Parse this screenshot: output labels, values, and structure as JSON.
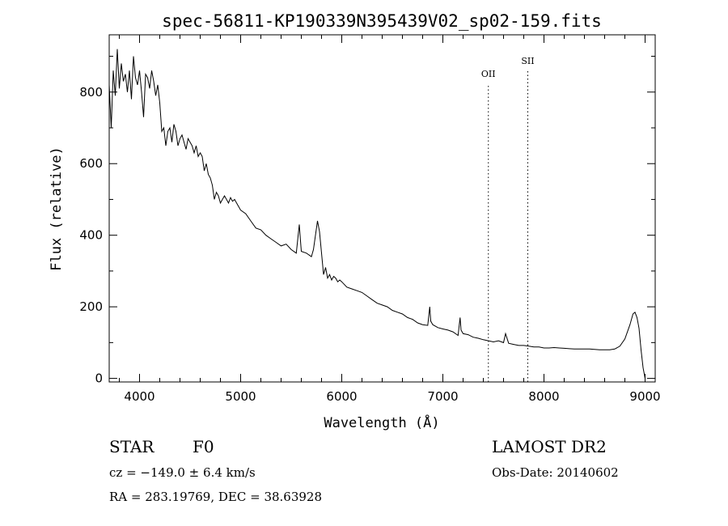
{
  "chart_data": {
    "type": "line",
    "title": "spec-56811-KP190339N395439V02_sp02-159.fits",
    "xlabel": "Wavelength (Å)",
    "ylabel": "Flux (relative)",
    "xlim": [
      3700,
      9100
    ],
    "ylim": [
      -10,
      960
    ],
    "xticks": [
      4000,
      5000,
      6000,
      7000,
      8000,
      9000
    ],
    "yticks": [
      0,
      200,
      400,
      600,
      800
    ],
    "grid": false,
    "line_color": "#000000",
    "lines": [
      {
        "label": "OII",
        "x": 7450
      },
      {
        "label": "SII",
        "x": 7840
      }
    ],
    "series": [
      {
        "x": [
          3700,
          3720,
          3740,
          3760,
          3780,
          3800,
          3820,
          3840,
          3860,
          3880,
          3900,
          3920,
          3940,
          3960,
          3980,
          4000,
          4020,
          4040,
          4060,
          4080,
          4100,
          4120,
          4140,
          4160,
          4180,
          4200,
          4220,
          4240,
          4260,
          4280,
          4300,
          4320,
          4340,
          4360,
          4380,
          4400,
          4420,
          4440,
          4460,
          4480,
          4500,
          4520,
          4540,
          4560,
          4580,
          4600,
          4620,
          4640,
          4660,
          4680,
          4700,
          4720,
          4740,
          4760,
          4780,
          4800,
          4820,
          4840,
          4860,
          4880,
          4900,
          4920,
          4940,
          4960,
          4980,
          5000,
          5050,
          5100,
          5150,
          5200,
          5250,
          5300,
          5350,
          5400,
          5450,
          5500,
          5550,
          5580,
          5590,
          5600,
          5650,
          5700,
          5720,
          5740,
          5760,
          5780,
          5800,
          5820,
          5840,
          5860,
          5880,
          5900,
          5920,
          5940,
          5960,
          5980,
          6000,
          6050,
          6100,
          6150,
          6200,
          6250,
          6300,
          6350,
          6400,
          6450,
          6500,
          6550,
          6600,
          6650,
          6700,
          6750,
          6800,
          6850,
          6870,
          6880,
          6900,
          6950,
          7000,
          7050,
          7100,
          7150,
          7170,
          7180,
          7200,
          7250,
          7300,
          7350,
          7400,
          7450,
          7500,
          7550,
          7600,
          7620,
          7650,
          7700,
          7750,
          7800,
          7850,
          7900,
          7950,
          8000,
          8050,
          8100,
          8150,
          8200,
          8250,
          8300,
          8350,
          8400,
          8450,
          8500,
          8550,
          8600,
          8650,
          8700,
          8750,
          8800,
          8850,
          8880,
          8900,
          8920,
          8940,
          8960,
          8980,
          9000
        ],
        "values": [
          820,
          700,
          860,
          790,
          920,
          810,
          880,
          830,
          850,
          800,
          860,
          780,
          900,
          840,
          820,
          860,
          800,
          730,
          850,
          840,
          810,
          860,
          830,
          790,
          820,
          770,
          690,
          700,
          650,
          690,
          700,
          660,
          710,
          690,
          650,
          670,
          680,
          660,
          640,
          670,
          660,
          650,
          630,
          650,
          620,
          630,
          620,
          580,
          600,
          570,
          560,
          540,
          500,
          520,
          510,
          490,
          500,
          510,
          500,
          490,
          505,
          495,
          500,
          490,
          480,
          470,
          460,
          440,
          420,
          415,
          400,
          390,
          380,
          370,
          375,
          360,
          350,
          430,
          390,
          355,
          350,
          340,
          360,
          400,
          440,
          410,
          350,
          290,
          310,
          280,
          290,
          275,
          285,
          280,
          270,
          275,
          270,
          255,
          250,
          245,
          240,
          230,
          220,
          210,
          205,
          200,
          190,
          185,
          180,
          170,
          165,
          155,
          150,
          148,
          200,
          160,
          150,
          142,
          138,
          135,
          130,
          120,
          170,
          135,
          125,
          122,
          115,
          112,
          108,
          105,
          102,
          105,
          100,
          125,
          98,
          95,
          92,
          92,
          90,
          88,
          88,
          85,
          85,
          86,
          85,
          84,
          83,
          82,
          82,
          82,
          82,
          81,
          80,
          80,
          80,
          82,
          90,
          110,
          150,
          180,
          185,
          170,
          140,
          80,
          30,
          0
        ]
      }
    ]
  },
  "info": {
    "object_class": "STAR",
    "subclass": "F0",
    "survey": "LAMOST DR2",
    "cz": "cz = −149.0 ± 6.4 km/s",
    "obs_date": "Obs-Date: 20140602",
    "coords": "RA = 283.19769, DEC =  38.63928"
  }
}
